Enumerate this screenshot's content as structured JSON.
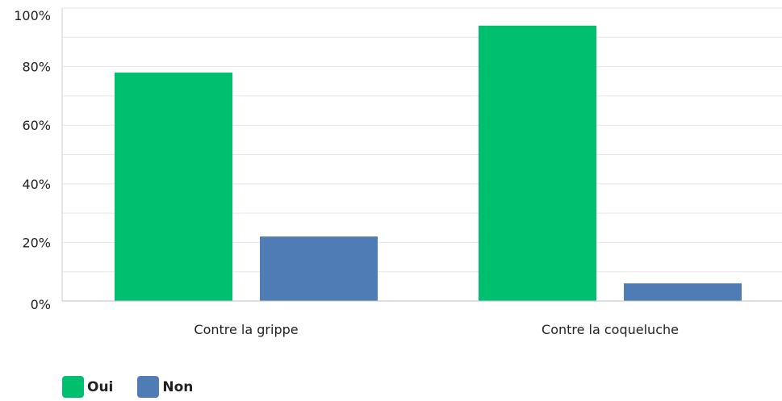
{
  "chart_data": {
    "type": "bar",
    "categories": [
      "Contre la grippe",
      "Contre la coqueluche"
    ],
    "series": [
      {
        "name": "Oui",
        "color": "#00BF6F",
        "values": [
          78,
          94
        ]
      },
      {
        "name": "Non",
        "color": "#507CB6",
        "values": [
          22,
          6
        ]
      }
    ],
    "ylim": [
      0,
      100
    ],
    "yticks": [
      "0%",
      "20%",
      "40%",
      "60%",
      "80%",
      "100%"
    ],
    "ytick_values": [
      0,
      20,
      40,
      60,
      80,
      100
    ],
    "grid": true,
    "legend": "bottom-left",
    "title": "",
    "xlabel": "",
    "ylabel": ""
  }
}
